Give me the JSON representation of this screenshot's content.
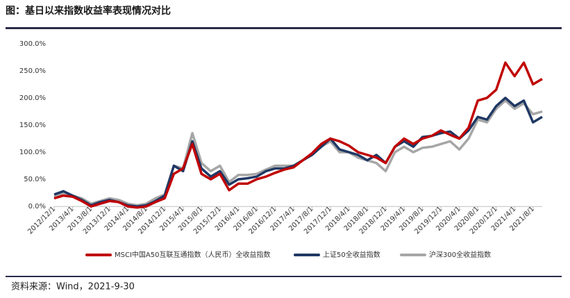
{
  "chart_data": {
    "type": "line",
    "title": "图：基日以来指数收益率表现情况对比",
    "source": "资料来源：Wind，2021-9-30",
    "categories": [
      "2012/12/1",
      null,
      "2013/4/1",
      null,
      "2013/8/1",
      null,
      "2013/12/1",
      null,
      "2014/4/1",
      null,
      "2014/8/1",
      null,
      "2014/12/1",
      null,
      "2015/4/1",
      null,
      "2015/8/1",
      null,
      "2015/12/1",
      null,
      "2016/4/1",
      null,
      "2016/8/1",
      null,
      "2016/12/1",
      null,
      "2017/4/1",
      null,
      "2017/8/1",
      null,
      "2017/12/1",
      null,
      "2018/4/1",
      null,
      "2018/8/1",
      null,
      "2018/12/1",
      null,
      "2019/4/1",
      null,
      "2019/8/1",
      null,
      "2019/12/1",
      null,
      "2020/4/1",
      null,
      "2020/8/1",
      null,
      "2020/12/1",
      null,
      "2021/4/1",
      null,
      "2021/8/1",
      null
    ],
    "series": [
      {
        "name": "MSCI中国A50互联互通指数（人民币）全收益指数",
        "color": "#c00000",
        "values": [
          15,
          20,
          18,
          10,
          0,
          5,
          10,
          8,
          0,
          -2,
          0,
          8,
          15,
          60,
          70,
          115,
          60,
          50,
          60,
          30,
          42,
          42,
          50,
          55,
          62,
          68,
          72,
          85,
          98,
          115,
          125,
          120,
          112,
          100,
          95,
          90,
          80,
          110,
          125,
          115,
          125,
          130,
          140,
          132,
          125,
          145,
          195,
          200,
          215,
          265,
          240,
          265,
          225,
          235
        ]
      },
      {
        "name": "上证50全收益指数",
        "color": "#1f3864",
        "values": [
          22,
          28,
          20,
          12,
          2,
          8,
          12,
          8,
          2,
          0,
          2,
          10,
          20,
          75,
          65,
          120,
          70,
          55,
          65,
          40,
          50,
          52,
          55,
          65,
          70,
          70,
          75,
          85,
          95,
          110,
          125,
          105,
          100,
          95,
          85,
          95,
          80,
          110,
          120,
          110,
          128,
          130,
          135,
          138,
          125,
          140,
          165,
          160,
          185,
          200,
          185,
          195,
          155,
          165
        ]
      },
      {
        "name": "沪深300全收益指数",
        "color": "#a6a6a6",
        "values": [
          18,
          25,
          20,
          15,
          5,
          10,
          15,
          12,
          5,
          2,
          5,
          15,
          22,
          75,
          70,
          135,
          80,
          65,
          75,
          45,
          58,
          58,
          60,
          68,
          75,
          75,
          75,
          85,
          95,
          110,
          120,
          100,
          100,
          90,
          85,
          80,
          65,
          100,
          110,
          100,
          108,
          110,
          115,
          120,
          105,
          125,
          160,
          155,
          180,
          195,
          180,
          190,
          170,
          175
        ]
      }
    ],
    "ylim": [
      -10,
      310
    ],
    "yticks": [
      {
        "value": 0,
        "label": "0.0%"
      },
      {
        "value": 50,
        "label": "50.0%"
      },
      {
        "value": 100,
        "label": "100.0%"
      },
      {
        "value": 150,
        "label": "150.0%"
      },
      {
        "value": 200,
        "label": "200.0%"
      },
      {
        "value": 250,
        "label": "250.0%"
      },
      {
        "value": 300,
        "label": "300.0%"
      }
    ],
    "grid": false
  }
}
